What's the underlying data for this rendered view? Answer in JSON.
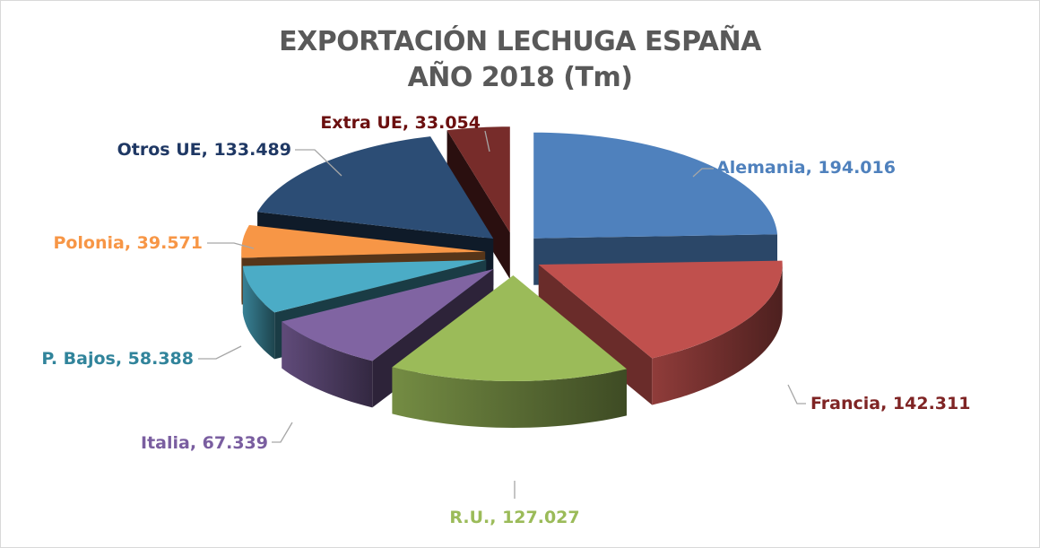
{
  "chart_data": {
    "type": "pie",
    "style": "3d-exploded",
    "title": [
      "EXPORTACIÓN LECHUGA ESPAÑA",
      "AÑO 2018 (Tm)"
    ],
    "categories": [
      "Alemania",
      "Francia",
      "R.U.",
      "Italia",
      "P. Bajos",
      "Polonia",
      "Otros UE",
      "Extra UE"
    ],
    "values": [
      194016,
      142311,
      127027,
      67339,
      58388,
      39571,
      133489,
      33054
    ],
    "data_labels": [
      "Alemania, 194.016",
      "Francia, 142.311",
      "R.U., 127.027",
      "Italia, 67.339",
      "P. Bajos, 58.388",
      "Polonia, 39.571",
      "Otros UE, 133.489",
      "Extra UE, 33.054"
    ],
    "colors": [
      "#4f81bd",
      "#c0504d",
      "#9bbb59",
      "#8064a2",
      "#4bacc6",
      "#f79646",
      "#2c4d75",
      "#772c2a"
    ],
    "label_colors": [
      "#4f81bd",
      "#7f2424",
      "#9bbb59",
      "#7a5ea0",
      "#31849b",
      "#f79646",
      "#1f3864",
      "#6b0f0f"
    ],
    "legend": "none"
  }
}
